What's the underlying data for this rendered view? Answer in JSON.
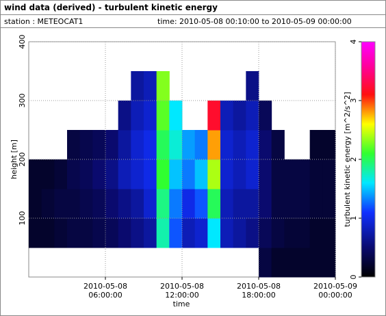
{
  "chart_data": {
    "type": "heatmap",
    "title": "wind data (derived) - turbulent kinetic energy",
    "station": "station : METEOCAT1",
    "period": "time: 2010-05-08 00:10:00 to 2010-05-09 00:00:00",
    "x_label": "time",
    "y_label": "height [m]",
    "colorbar_label": "turbulent kinetic energy [m^2/s^2]",
    "xbins": [
      0,
      1,
      2,
      3,
      4,
      5,
      6,
      7,
      8,
      9,
      10,
      11,
      12,
      13,
      14,
      15,
      16,
      17,
      18,
      19,
      20,
      21,
      22,
      23,
      24
    ],
    "ybins": [
      0,
      50,
      100,
      150,
      200,
      250,
      300,
      350,
      400
    ],
    "z": [
      [
        null,
        0.2,
        0.2,
        0.2,
        null,
        null,
        null,
        null
      ],
      [
        null,
        0.2,
        0.25,
        0.2,
        null,
        null,
        null,
        null
      ],
      [
        null,
        0.25,
        0.3,
        0.25,
        null,
        null,
        null,
        null
      ],
      [
        null,
        0.3,
        0.3,
        0.35,
        0.3,
        null,
        null,
        null
      ],
      [
        null,
        0.3,
        0.35,
        0.4,
        0.35,
        null,
        null,
        null
      ],
      [
        null,
        0.35,
        0.4,
        0.5,
        0.4,
        null,
        null,
        null
      ],
      [
        null,
        0.4,
        0.5,
        0.6,
        0.5,
        null,
        null,
        null
      ],
      [
        null,
        0.5,
        0.6,
        0.8,
        0.7,
        0.6,
        null,
        null
      ],
      [
        null,
        0.6,
        0.7,
        0.9,
        0.9,
        0.8,
        0.7,
        null
      ],
      [
        null,
        0.7,
        0.9,
        1.0,
        1.0,
        0.9,
        0.8,
        null
      ],
      [
        null,
        1.8,
        1.9,
        2.1,
        2.0,
        2.2,
        2.3,
        null
      ],
      [
        null,
        1.2,
        1.3,
        1.5,
        1.7,
        1.6,
        null,
        null
      ],
      [
        null,
        0.8,
        1.0,
        1.3,
        1.4,
        null,
        null,
        null
      ],
      [
        null,
        0.9,
        1.2,
        1.5,
        1.3,
        null,
        null,
        null
      ],
      [
        null,
        1.6,
        2.0,
        2.4,
        2.8,
        3.2,
        null,
        null
      ],
      [
        null,
        0.8,
        0.8,
        0.9,
        0.9,
        0.8,
        null,
        null
      ],
      [
        null,
        0.7,
        0.7,
        0.8,
        0.8,
        0.7,
        null,
        null
      ],
      [
        null,
        0.6,
        0.7,
        0.9,
        0.9,
        0.8,
        0.6,
        null
      ],
      [
        0.3,
        0.4,
        0.5,
        0.5,
        0.5,
        0.4,
        null,
        null
      ],
      [
        0.2,
        0.3,
        0.3,
        0.3,
        0.3,
        null,
        null,
        null
      ],
      [
        0.2,
        0.25,
        0.3,
        0.3,
        null,
        null,
        null,
        null
      ],
      [
        0.2,
        0.25,
        0.3,
        0.3,
        null,
        null,
        null,
        null
      ],
      [
        0.2,
        0.2,
        0.25,
        0.25,
        0.2,
        null,
        null,
        null
      ],
      [
        0.2,
        0.2,
        0.25,
        0.25,
        0.2,
        null,
        null,
        null
      ]
    ],
    "xlim": [
      0,
      24
    ],
    "ylim": [
      0,
      400
    ],
    "zlim": [
      0,
      4
    ],
    "xticks": [
      {
        "value": 6,
        "label": "2010-05-08 06:00:00"
      },
      {
        "value": 12,
        "label": "2010-05-08 12:00:00"
      },
      {
        "value": 18,
        "label": "2010-05-08 18:00:00"
      },
      {
        "value": 24,
        "label": "2010-05-09 00:00:00"
      }
    ],
    "yticks": [
      100,
      200,
      300,
      400
    ],
    "zticks": [
      0,
      1,
      2,
      3,
      4
    ],
    "grid": true,
    "colormap": [
      [
        0,
        "#000000"
      ],
      [
        0.5,
        "#0a0a6e"
      ],
      [
        1.1,
        "#1030ff"
      ],
      [
        1.6,
        "#00e8ff"
      ],
      [
        2.1,
        "#30ff30"
      ],
      [
        2.6,
        "#ffff00"
      ],
      [
        3.1,
        "#ff1010"
      ],
      [
        3.6,
        "#ff00a0"
      ],
      [
        4,
        "#ff00ff"
      ]
    ]
  }
}
